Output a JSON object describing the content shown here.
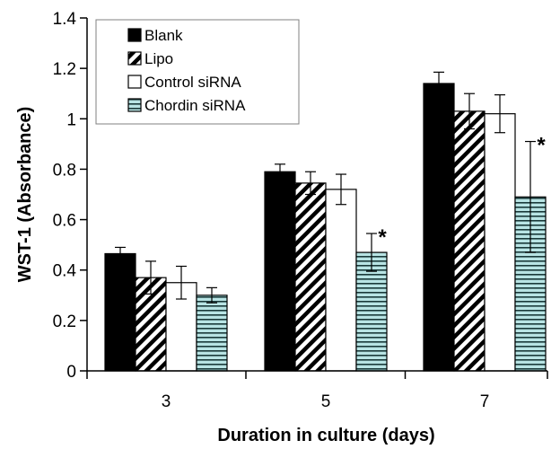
{
  "chart_data": {
    "type": "bar",
    "title": "",
    "xlabel": "Duration in culture (days)",
    "ylabel": "WST-1 (Absorbance)",
    "ylim": [
      0,
      1.4
    ],
    "yticks": [
      0,
      0.2,
      0.4,
      0.6,
      0.8,
      1,
      1.2,
      1.4
    ],
    "ytick_labels": [
      "0",
      "0.2",
      "0.4",
      "0.6",
      "0.8",
      "1",
      "1.2",
      "1.4"
    ],
    "categories": [
      "3",
      "5",
      "7"
    ],
    "grid": false,
    "legend": {
      "placement": "top-left",
      "framed": true
    },
    "series": [
      {
        "name": "Blank",
        "pattern": "solid",
        "color": "#000000",
        "values": [
          0.465,
          0.79,
          1.14
        ],
        "errors": [
          0.025,
          0.03,
          0.045
        ]
      },
      {
        "name": "Lipo",
        "pattern": "diagonal-hatch",
        "color": "#000000",
        "values": [
          0.37,
          0.745,
          1.03
        ],
        "errors": [
          0.065,
          0.045,
          0.07
        ]
      },
      {
        "name": "Control siRNA",
        "pattern": "hollow",
        "color": "#ffffff",
        "values": [
          0.35,
          0.72,
          1.02
        ],
        "errors": [
          0.065,
          0.06,
          0.075
        ]
      },
      {
        "name": "Chordin siRNA",
        "pattern": "horizontal-stripes",
        "color": "#b8e4e4",
        "values": [
          0.3,
          0.47,
          0.69
        ],
        "errors": [
          0.03,
          0.075,
          0.22
        ]
      }
    ],
    "annotations": [
      {
        "text": "*",
        "category": "5",
        "series": "Chordin siRNA"
      },
      {
        "text": "*",
        "category": "7",
        "series": "Chordin siRNA"
      }
    ]
  }
}
